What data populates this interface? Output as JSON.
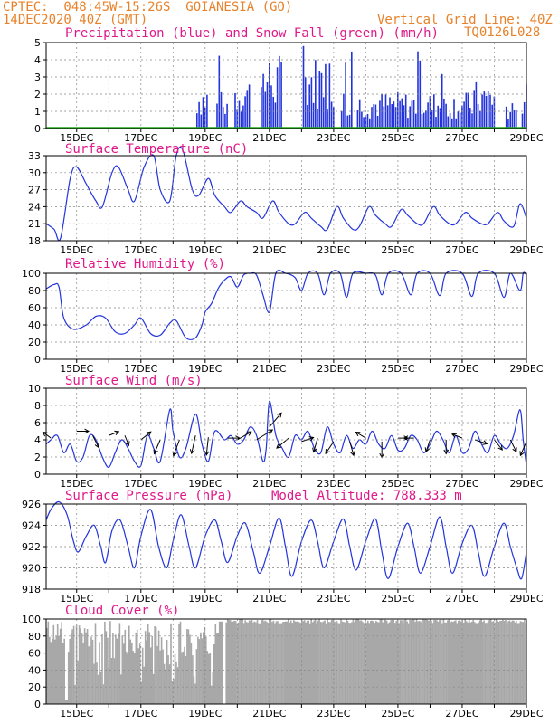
{
  "header": {
    "line1": "CPTEC:  048:45W-15:26S  GOIANESIA (GO)",
    "line2": "14DEC2020 40Z (GMT)",
    "grid_note": "Vertical Grid Line: 40Z",
    "model_id": "TQ0126L028"
  },
  "colors": {
    "header": "#e8822a",
    "title": "#e0188a",
    "series": "#2233dd",
    "snow": "#22aa22",
    "cloud": "#a8a8a8",
    "grid": "#888888"
  },
  "chart_data": [
    {
      "id": "precip",
      "type": "bar",
      "title": "Precipitation (blue) and Snow Fall (green) (mm/h)",
      "ylim": [
        0,
        5
      ],
      "yticks": [
        0,
        1,
        2,
        3,
        4,
        5
      ],
      "xlim_days": [
        14.05,
        29.0
      ],
      "x_tick_labels": [
        "15DEC",
        "17DEC",
        "19DEC",
        "21DEC",
        "23DEC",
        "25DEC",
        "27DEC",
        "29DEC"
      ],
      "grid": true,
      "series": [
        {
          "name": "Precipitation",
          "color": "#2233dd"
        },
        {
          "name": "Snow Fall",
          "color": "#22aa22",
          "value": 0
        }
      ]
    },
    {
      "id": "temp",
      "type": "line",
      "title": "Surface Temperature (nC)",
      "ylim": [
        18,
        33
      ],
      "yticks": [
        18,
        21,
        24,
        27,
        30,
        33
      ],
      "x_tick_labels": [
        "15DEC",
        "17DEC",
        "19DEC",
        "21DEC",
        "23DEC",
        "25DEC",
        "27DEC",
        "29DEC"
      ],
      "grid": true
    },
    {
      "id": "rh",
      "type": "line",
      "title": "Relative Humidity (%)",
      "ylim": [
        0,
        100
      ],
      "yticks": [
        0,
        20,
        40,
        60,
        80,
        100
      ],
      "x_tick_labels": [
        "15DEC",
        "17DEC",
        "19DEC",
        "21DEC",
        "23DEC",
        "25DEC",
        "27DEC",
        "29DEC"
      ],
      "grid": true
    },
    {
      "id": "wind",
      "type": "line",
      "title": "Surface Wind (m/s)",
      "ylim": [
        0,
        10
      ],
      "yticks": [
        0,
        2,
        4,
        6,
        8,
        10
      ],
      "x_tick_labels": [
        "15DEC",
        "17DEC",
        "19DEC",
        "21DEC",
        "23DEC",
        "25DEC",
        "27DEC",
        "29DEC"
      ],
      "grid": true
    },
    {
      "id": "press",
      "type": "line",
      "title": "Surface Pressure (hPa)",
      "subtitle": "Model Altitude: 788.333 m",
      "ylim": [
        918,
        926
      ],
      "yticks": [
        918,
        920,
        922,
        924,
        926
      ],
      "x_tick_labels": [
        "15DEC",
        "17DEC",
        "19DEC",
        "21DEC",
        "23DEC",
        "25DEC",
        "27DEC",
        "29DEC"
      ],
      "grid": true
    },
    {
      "id": "cloud",
      "type": "area",
      "title": "Cloud Cover (%)",
      "ylim": [
        0,
        100
      ],
      "yticks": [
        0,
        20,
        40,
        60,
        80,
        100
      ],
      "x_tick_labels": [
        "15DEC",
        "17DEC",
        "19DEC",
        "21DEC",
        "23DEC",
        "25DEC",
        "27DEC",
        "29DEC"
      ],
      "grid": true
    }
  ],
  "temp_points": [
    [
      14.05,
      21
    ],
    [
      14.3,
      20
    ],
    [
      14.5,
      18.5
    ],
    [
      14.8,
      29
    ],
    [
      15.0,
      31
    ],
    [
      15.3,
      28
    ],
    [
      15.6,
      25
    ],
    [
      15.8,
      24
    ],
    [
      16.1,
      30
    ],
    [
      16.3,
      31
    ],
    [
      16.6,
      27
    ],
    [
      16.8,
      25
    ],
    [
      17.1,
      31
    ],
    [
      17.4,
      33
    ],
    [
      17.6,
      27
    ],
    [
      17.9,
      25
    ],
    [
      18.1,
      33
    ],
    [
      18.3,
      34
    ],
    [
      18.6,
      27
    ],
    [
      18.8,
      26
    ],
    [
      19.1,
      29
    ],
    [
      19.3,
      26
    ],
    [
      19.6,
      24
    ],
    [
      19.8,
      23
    ],
    [
      20.1,
      25
    ],
    [
      20.3,
      24
    ],
    [
      20.6,
      23
    ],
    [
      20.8,
      22
    ],
    [
      21.1,
      25
    ],
    [
      21.3,
      23
    ],
    [
      21.6,
      21
    ],
    [
      21.8,
      21
    ],
    [
      22.1,
      23
    ],
    [
      22.3,
      22
    ],
    [
      22.6,
      20.5
    ],
    [
      22.8,
      20
    ],
    [
      23.1,
      24
    ],
    [
      23.3,
      22
    ],
    [
      23.6,
      20
    ],
    [
      23.8,
      20.5
    ],
    [
      24.1,
      24
    ],
    [
      24.3,
      22.5
    ],
    [
      24.6,
      21
    ],
    [
      24.8,
      20.5
    ],
    [
      25.1,
      23.5
    ],
    [
      25.3,
      22.5
    ],
    [
      25.6,
      21
    ],
    [
      25.8,
      21
    ],
    [
      26.1,
      24
    ],
    [
      26.3,
      22.5
    ],
    [
      26.6,
      21
    ],
    [
      26.8,
      21
    ],
    [
      27.1,
      23
    ],
    [
      27.3,
      22
    ],
    [
      27.6,
      21
    ],
    [
      27.8,
      21
    ],
    [
      28.1,
      23
    ],
    [
      28.3,
      21.5
    ],
    [
      28.6,
      20.5
    ],
    [
      28.8,
      24.5
    ],
    [
      29.0,
      22
    ]
  ],
  "rh_points": [
    [
      14.05,
      82
    ],
    [
      14.3,
      87
    ],
    [
      14.45,
      84
    ],
    [
      14.6,
      48
    ],
    [
      14.9,
      35
    ],
    [
      15.3,
      40
    ],
    [
      15.6,
      50
    ],
    [
      15.9,
      48
    ],
    [
      16.2,
      32
    ],
    [
      16.5,
      30
    ],
    [
      16.8,
      40
    ],
    [
      17.0,
      48
    ],
    [
      17.3,
      30
    ],
    [
      17.6,
      28
    ],
    [
      17.9,
      42
    ],
    [
      18.1,
      45
    ],
    [
      18.4,
      25
    ],
    [
      18.7,
      25
    ],
    [
      18.9,
      40
    ],
    [
      19.0,
      55
    ],
    [
      19.2,
      65
    ],
    [
      19.4,
      82
    ],
    [
      19.6,
      92
    ],
    [
      19.8,
      96
    ],
    [
      20.0,
      84
    ],
    [
      20.2,
      98
    ],
    [
      20.4,
      100
    ],
    [
      20.6,
      98
    ],
    [
      20.8,
      75
    ],
    [
      21.0,
      55
    ],
    [
      21.2,
      100
    ],
    [
      21.5,
      100
    ],
    [
      21.8,
      95
    ],
    [
      22.0,
      80
    ],
    [
      22.2,
      100
    ],
    [
      22.5,
      100
    ],
    [
      22.7,
      75
    ],
    [
      22.9,
      100
    ],
    [
      23.2,
      100
    ],
    [
      23.4,
      72
    ],
    [
      23.6,
      100
    ],
    [
      24.0,
      100
    ],
    [
      24.3,
      98
    ],
    [
      24.5,
      75
    ],
    [
      24.7,
      100
    ],
    [
      25.1,
      100
    ],
    [
      25.4,
      75
    ],
    [
      25.6,
      100
    ],
    [
      26.0,
      100
    ],
    [
      26.3,
      74
    ],
    [
      26.5,
      100
    ],
    [
      27.0,
      100
    ],
    [
      27.3,
      73
    ],
    [
      27.5,
      100
    ],
    [
      28.0,
      100
    ],
    [
      28.3,
      72
    ],
    [
      28.5,
      100
    ],
    [
      28.8,
      80
    ],
    [
      28.9,
      100
    ],
    [
      29.0,
      98
    ]
  ],
  "wind_points": [
    [
      14.05,
      3.5
    ],
    [
      14.2,
      4
    ],
    [
      14.4,
      4.5
    ],
    [
      14.6,
      2.5
    ],
    [
      14.8,
      3.5
    ],
    [
      15.0,
      1.5
    ],
    [
      15.2,
      2
    ],
    [
      15.4,
      4.5
    ],
    [
      15.6,
      4
    ],
    [
      15.8,
      2
    ],
    [
      16.0,
      0.8
    ],
    [
      16.2,
      2.5
    ],
    [
      16.4,
      4
    ],
    [
      16.6,
      3
    ],
    [
      16.8,
      1.5
    ],
    [
      17.0,
      1
    ],
    [
      17.2,
      4.5
    ],
    [
      17.4,
      3
    ],
    [
      17.6,
      1.5
    ],
    [
      17.9,
      7.5
    ],
    [
      18.0,
      5
    ],
    [
      18.2,
      2
    ],
    [
      18.4,
      3
    ],
    [
      18.7,
      7
    ],
    [
      18.9,
      3.5
    ],
    [
      19.1,
      1.5
    ],
    [
      19.3,
      5
    ],
    [
      19.6,
      4
    ],
    [
      19.8,
      4.5
    ],
    [
      20.0,
      3.5
    ],
    [
      20.2,
      4
    ],
    [
      20.4,
      5.5
    ],
    [
      20.6,
      4.5
    ],
    [
      20.8,
      1.5
    ],
    [
      20.9,
      3
    ],
    [
      21.0,
      8.5
    ],
    [
      21.2,
      4.5
    ],
    [
      21.4,
      3
    ],
    [
      21.6,
      2
    ],
    [
      21.8,
      4.5
    ],
    [
      22.0,
      4
    ],
    [
      22.2,
      5
    ],
    [
      22.4,
      3
    ],
    [
      22.6,
      2.5
    ],
    [
      22.8,
      5.5
    ],
    [
      23.0,
      3.5
    ],
    [
      23.2,
      2.5
    ],
    [
      23.4,
      4.5
    ],
    [
      23.6,
      3
    ],
    [
      23.8,
      4
    ],
    [
      24.0,
      3.5
    ],
    [
      24.2,
      5
    ],
    [
      24.4,
      3.5
    ],
    [
      24.6,
      3
    ],
    [
      24.8,
      4.5
    ],
    [
      25.0,
      2.8
    ],
    [
      25.2,
      3
    ],
    [
      25.4,
      4.5
    ],
    [
      25.6,
      4
    ],
    [
      25.8,
      2.5
    ],
    [
      26.0,
      3.5
    ],
    [
      26.2,
      5
    ],
    [
      26.4,
      4
    ],
    [
      26.6,
      2.5
    ],
    [
      26.8,
      4.5
    ],
    [
      27.0,
      2.5
    ],
    [
      27.2,
      3
    ],
    [
      27.4,
      5
    ],
    [
      27.6,
      3.5
    ],
    [
      27.8,
      2.5
    ],
    [
      28.0,
      4.5
    ],
    [
      28.2,
      3.5
    ],
    [
      28.4,
      3
    ],
    [
      28.6,
      4.5
    ],
    [
      28.8,
      7.5
    ],
    [
      28.9,
      4
    ],
    [
      29.0,
      1
    ]
  ],
  "wind_arrows": [
    [
      14.2,
      4.2,
      -0.4,
      0.3
    ],
    [
      15.0,
      5,
      0.6,
      0
    ],
    [
      15.5,
      4.5,
      0.3,
      -0.6
    ],
    [
      16.0,
      4.5,
      0.5,
      0.2
    ],
    [
      16.5,
      4.5,
      0.2,
      -0.5
    ],
    [
      17.0,
      4,
      0.5,
      0.4
    ],
    [
      17.6,
      4,
      -0.3,
      -0.7
    ],
    [
      18.2,
      4,
      -0.3,
      -0.8
    ],
    [
      18.7,
      4.5,
      -0.2,
      -0.9
    ],
    [
      19.1,
      4.3,
      -0.1,
      -0.9
    ],
    [
      19.7,
      4.2,
      0.6,
      0
    ],
    [
      20.0,
      4,
      0.7,
      0.4
    ],
    [
      20.6,
      4,
      0.8,
      0.5
    ],
    [
      21.0,
      5.5,
      0.6,
      0.7
    ],
    [
      21.6,
      4.2,
      -0.6,
      -0.5
    ],
    [
      22.0,
      3.8,
      0.6,
      0.2
    ],
    [
      22.5,
      4.2,
      -0.2,
      -0.7
    ],
    [
      23.0,
      3.8,
      -0.4,
      -0.6
    ],
    [
      23.5,
      3.8,
      0.2,
      -0.7
    ],
    [
      24.0,
      4.2,
      -0.5,
      0.3
    ],
    [
      24.5,
      3.8,
      0,
      -0.8
    ],
    [
      25.0,
      4.2,
      0.5,
      0
    ],
    [
      25.5,
      4.2,
      -0.5,
      0
    ],
    [
      26.0,
      4,
      -0.2,
      -0.6
    ],
    [
      26.5,
      4,
      0,
      -0.7
    ],
    [
      27.0,
      4.2,
      -0.5,
      0.2
    ],
    [
      27.4,
      4,
      0.6,
      -0.2
    ],
    [
      28.0,
      4,
      0.4,
      -0.5
    ],
    [
      28.5,
      4,
      0.3,
      -0.6
    ],
    [
      29.0,
      3.8,
      -0.3,
      -0.7
    ]
  ],
  "press_points": [
    [
      14.05,
      924.5
    ],
    [
      14.2,
      925.5
    ],
    [
      14.45,
      926.2
    ],
    [
      14.7,
      925
    ],
    [
      14.9,
      922.5
    ],
    [
      15.05,
      921.5
    ],
    [
      15.3,
      923
    ],
    [
      15.55,
      924
    ],
    [
      15.75,
      922
    ],
    [
      15.9,
      920.5
    ],
    [
      16.1,
      923.5
    ],
    [
      16.35,
      924.5
    ],
    [
      16.6,
      922
    ],
    [
      16.8,
      920
    ],
    [
      17.0,
      923
    ],
    [
      17.3,
      925.5
    ],
    [
      17.55,
      922
    ],
    [
      17.8,
      920
    ],
    [
      18.0,
      922.5
    ],
    [
      18.25,
      925
    ],
    [
      18.5,
      922
    ],
    [
      18.7,
      920
    ],
    [
      19.0,
      923
    ],
    [
      19.3,
      924.5
    ],
    [
      19.5,
      922.5
    ],
    [
      19.7,
      920.5
    ],
    [
      20.0,
      923
    ],
    [
      20.25,
      924.2
    ],
    [
      20.5,
      921.5
    ],
    [
      20.7,
      919.5
    ],
    [
      21.0,
      922
    ],
    [
      21.3,
      924.7
    ],
    [
      21.5,
      922
    ],
    [
      21.7,
      919.2
    ],
    [
      22.0,
      922.5
    ],
    [
      22.3,
      924.5
    ],
    [
      22.5,
      922.5
    ],
    [
      22.7,
      920
    ],
    [
      23.0,
      922.5
    ],
    [
      23.3,
      924.6
    ],
    [
      23.5,
      922
    ],
    [
      23.7,
      919.8
    ],
    [
      24.0,
      922.5
    ],
    [
      24.3,
      924.6
    ],
    [
      24.5,
      921.5
    ],
    [
      24.7,
      919
    ],
    [
      25.0,
      922
    ],
    [
      25.3,
      924.2
    ],
    [
      25.5,
      922
    ],
    [
      25.7,
      919.5
    ],
    [
      26.0,
      922
    ],
    [
      26.3,
      924.8
    ],
    [
      26.5,
      922
    ],
    [
      26.7,
      919.5
    ],
    [
      27.0,
      922.3
    ],
    [
      27.3,
      924
    ],
    [
      27.5,
      921.5
    ],
    [
      27.7,
      919.2
    ],
    [
      28.0,
      922
    ],
    [
      28.3,
      924.2
    ],
    [
      28.5,
      922
    ],
    [
      28.7,
      920
    ],
    [
      28.85,
      919
    ],
    [
      29.0,
      921.5
    ]
  ]
}
